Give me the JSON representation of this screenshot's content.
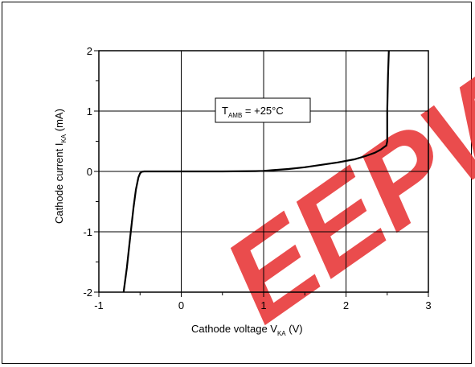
{
  "chart_data": {
    "type": "line",
    "annotation": {
      "main": "T",
      "sub": "AMB",
      "rest": " = +25°C"
    },
    "xlabel": {
      "main": "Cathode voltage V",
      "sub": "KA",
      "rest": " (V)"
    },
    "ylabel": {
      "main": "Cathode current I",
      "sub": "KA",
      "rest": " (mA)"
    },
    "xlim": [
      -1,
      3
    ],
    "ylim": [
      -2,
      2
    ],
    "x_ticks": [
      -1,
      0,
      1,
      2,
      3
    ],
    "y_ticks": [
      -2,
      -1,
      0,
      1,
      2
    ],
    "x_tick_labels": [
      "-1",
      "0",
      "1",
      "2",
      "3"
    ],
    "y_tick_labels": [
      "-2",
      "-1",
      "0",
      "1",
      "2"
    ],
    "grid": true,
    "series": [
      {
        "x": [
          -0.7,
          -0.66,
          -0.62,
          -0.58,
          -0.55,
          -0.52,
          -0.5,
          -0.48,
          -0.45,
          -0.3,
          0.0,
          0.5,
          0.9,
          1.0,
          1.1,
          1.3,
          1.5,
          1.7,
          1.9,
          2.1,
          2.25,
          2.35,
          2.42,
          2.46,
          2.49,
          2.5,
          2.5,
          2.51,
          2.52
        ],
        "y": [
          -2.0,
          -1.6,
          -1.1,
          -0.6,
          -0.3,
          -0.1,
          -0.03,
          -0.005,
          0.0,
          0.0,
          0.0,
          0.0,
          0.005,
          0.01,
          0.02,
          0.04,
          0.07,
          0.11,
          0.15,
          0.2,
          0.26,
          0.31,
          0.36,
          0.4,
          0.43,
          0.5,
          1.0,
          1.6,
          2.0
        ]
      }
    ],
    "watermark": "EEPW",
    "watermark_color": "#e8393a",
    "line_color": "#000000"
  }
}
